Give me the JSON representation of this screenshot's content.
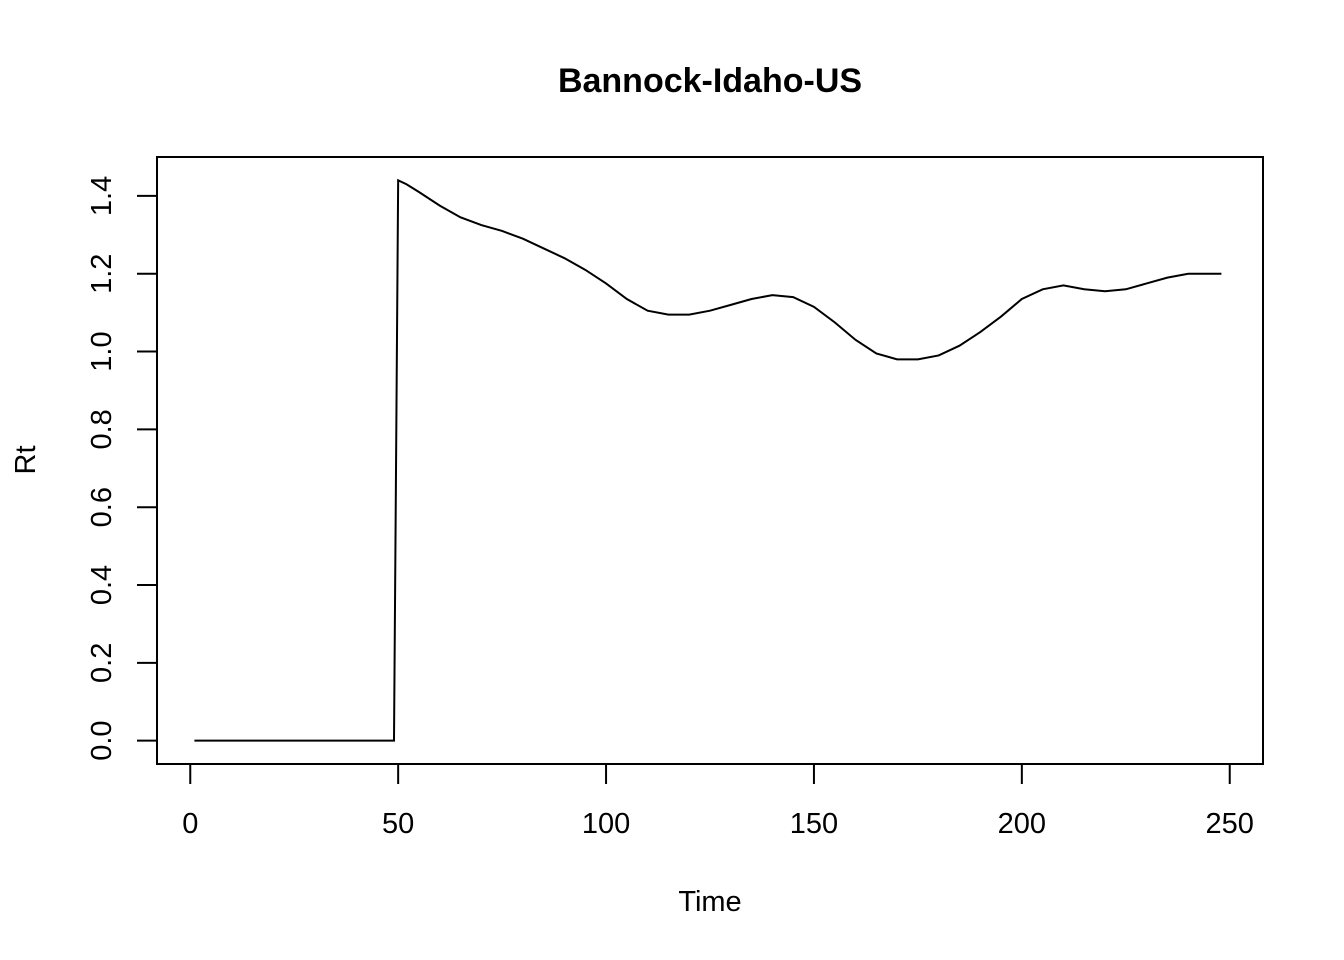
{
  "chart_data": {
    "type": "line",
    "title": "Bannock-Idaho-US",
    "xlabel": "Time",
    "ylabel": "Rt",
    "xlim": [
      -8,
      258
    ],
    "ylim": [
      -0.06,
      1.5
    ],
    "xticks": [
      0,
      50,
      100,
      150,
      200,
      250
    ],
    "yticks": [
      0.0,
      0.2,
      0.4,
      0.6,
      0.8,
      1.0,
      1.2,
      1.4
    ],
    "xtick_labels": [
      "0",
      "50",
      "100",
      "150",
      "200",
      "250"
    ],
    "ytick_labels": [
      "0.0",
      "0.2",
      "0.4",
      "0.6",
      "0.8",
      "1.0",
      "1.2",
      "1.4"
    ],
    "grid": false,
    "legend": "none",
    "line_color": "#000000",
    "series": [
      {
        "x": [
          1,
          49,
          50,
          52,
          55,
          60,
          65,
          70,
          75,
          80,
          85,
          90,
          95,
          100,
          105,
          110,
          115,
          120,
          125,
          130,
          135,
          140,
          145,
          150,
          155,
          160,
          165,
          170,
          175,
          180,
          185,
          190,
          195,
          200,
          205,
          210,
          215,
          220,
          225,
          230,
          235,
          240,
          245,
          248
        ],
        "y": [
          0.0,
          0.0,
          1.44,
          1.43,
          1.41,
          1.375,
          1.345,
          1.325,
          1.31,
          1.29,
          1.265,
          1.24,
          1.21,
          1.175,
          1.135,
          1.105,
          1.095,
          1.095,
          1.105,
          1.12,
          1.135,
          1.145,
          1.14,
          1.115,
          1.075,
          1.03,
          0.995,
          0.98,
          0.98,
          0.99,
          1.015,
          1.05,
          1.09,
          1.135,
          1.16,
          1.17,
          1.16,
          1.155,
          1.16,
          1.175,
          1.19,
          1.2,
          1.2,
          1.2
        ]
      }
    ]
  }
}
